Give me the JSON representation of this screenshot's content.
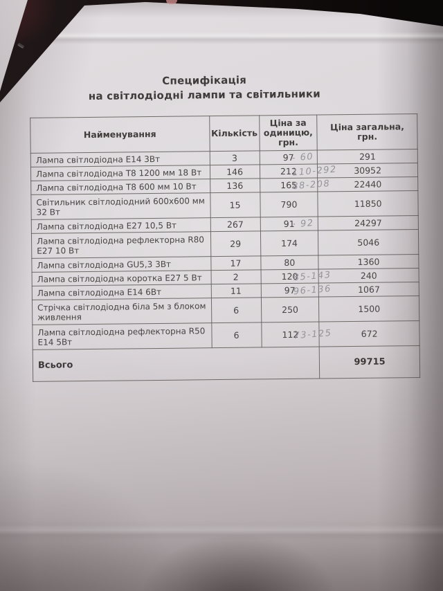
{
  "colors": {
    "paper": "#d9d5d8",
    "background": "#140e0f",
    "ink": "#454140",
    "pencil": "#8f8c95"
  },
  "document": {
    "title_line1": "Специфікація",
    "title_line2": "на світлодіодні лампи та світильники",
    "table": {
      "headers": [
        "Найменування",
        "Кількість",
        "Ціна за одиницю, грн.",
        "Ціна загальна, грн."
      ],
      "rows": [
        {
          "name": "Лампа світлодіодна Е14 3Вт",
          "qty": "3",
          "unit_price": "97",
          "handwritten": "- 60",
          "total": "291",
          "lines": 1
        },
        {
          "name": "Лампа світлодіодна Т8 1200 мм 18 Вт",
          "qty": "146",
          "unit_price": "212",
          "handwritten": "110-292",
          "total": "30952",
          "lines": 1
        },
        {
          "name": "Лампа світлодіодна Т8 600 мм 10 Вт",
          "qty": "136",
          "unit_price": "165",
          "handwritten": "88-208",
          "total": "22440",
          "lines": 1
        },
        {
          "name": "Світильник світлодіодний 600х600 мм 32 Вт",
          "qty": "15",
          "unit_price": "790",
          "handwritten": "",
          "total": "11850",
          "lines": 2
        },
        {
          "name": "Лампа світлодіодна Е27 10,5 Вт",
          "qty": "267",
          "unit_price": "91",
          "handwritten": "· 92",
          "total": "24297",
          "lines": 1
        },
        {
          "name": "Лампа світлодіодна рефлекторна R80 Е27 10 Вт",
          "qty": "29",
          "unit_price": "174",
          "handwritten": "",
          "total": "5046",
          "lines": 2
        },
        {
          "name": "Лампа світлодіодна GU5,3 3Вт",
          "qty": "17",
          "unit_price": "80",
          "handwritten": "",
          "total": "1360",
          "lines": 1
        },
        {
          "name": "Лампа світлодіодна коротка Е27 5 Вт",
          "qty": "2",
          "unit_price": "120",
          "handwritten": "85-143",
          "total": "240",
          "lines": 1
        },
        {
          "name": "Лампа світлодіодна Е14 6Вт",
          "qty": "11",
          "unit_price": "97",
          "handwritten": "96-136",
          "total": "1067",
          "lines": 1
        },
        {
          "name": "Стрічка світлодіодна біла 5м з блоком живлення",
          "qty": "6",
          "unit_price": "250",
          "handwritten": "",
          "total": "1500",
          "lines": 2
        },
        {
          "name": "Лампа світлодіодна рефлекторна R50 Е14 5Вт",
          "qty": "6",
          "unit_price": "112",
          "handwritten": "73-125",
          "total": "672",
          "lines": 2
        }
      ],
      "total_label": "Всього",
      "total_value": "99715"
    }
  }
}
